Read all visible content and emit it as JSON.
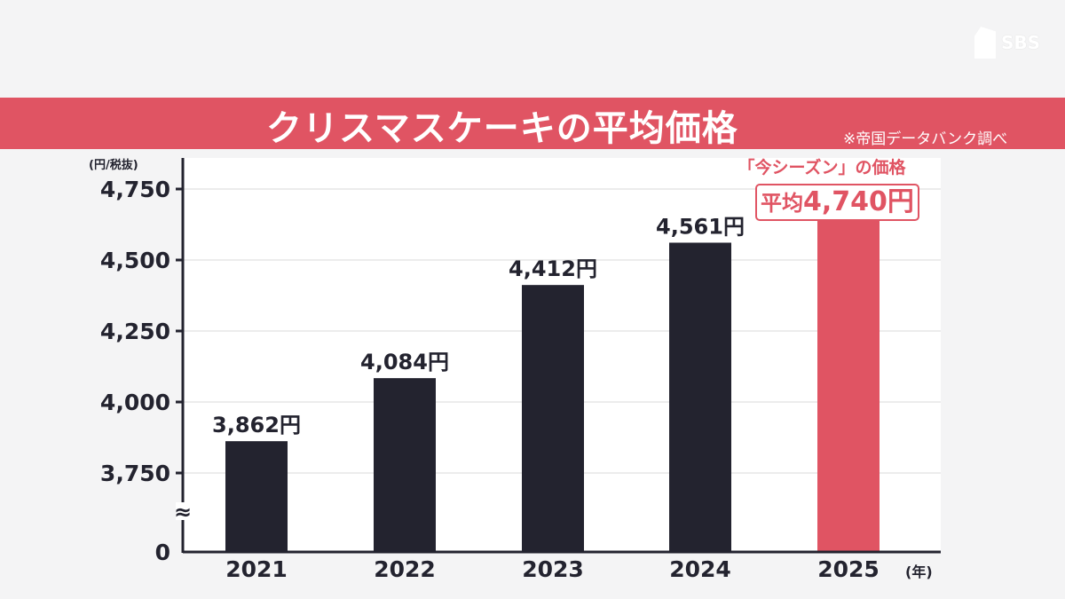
{
  "logo": {
    "text": "SBS"
  },
  "header": {
    "title": "クリスマスケーキの平均価格",
    "source": "※帝国データバンク調べ"
  },
  "callout": {
    "label": "「今シーズン」の価格",
    "prefix": "平均",
    "value": "4,740円"
  },
  "chart_data": {
    "type": "bar",
    "title": "クリスマスケーキの平均価格",
    "ylabel": "(円/税抜)",
    "xlabel": "(年)",
    "categories": [
      "2021",
      "2022",
      "2023",
      "2024",
      "2025"
    ],
    "values": [
      3862,
      4084,
      4412,
      4561,
      4740
    ],
    "data_labels": [
      "3,862円",
      "4,084円",
      "4,412円",
      "4,561円",
      ""
    ],
    "yticks": [
      0,
      3750,
      4000,
      4250,
      4500,
      4750
    ],
    "ytick_labels": [
      "0",
      "3,750",
      "4,000",
      "4,250",
      "4,500",
      "4,750"
    ],
    "ylim": [
      0,
      4850
    ],
    "axis_break": "≈",
    "grid": true,
    "colors": {
      "default": "#23232f",
      "highlight": "#e05463"
    },
    "highlight_index": 4
  }
}
